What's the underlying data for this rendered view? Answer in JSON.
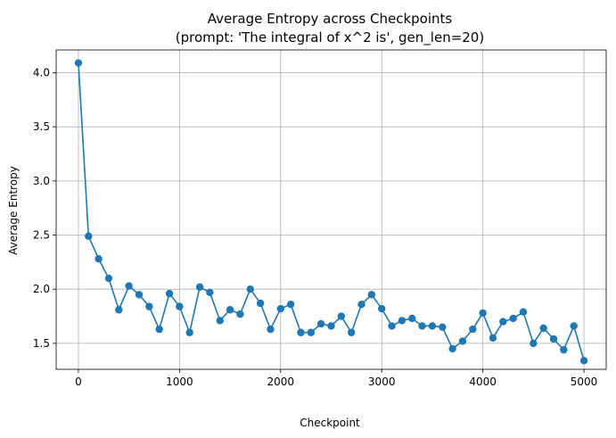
{
  "chart_data": {
    "type": "line",
    "title": "Average Entropy across Checkpoints",
    "subtitle": "(prompt: 'The integral of x^2 is', gen_len=20)",
    "xlabel": "Checkpoint",
    "ylabel": "Average Entropy",
    "xlim": [
      -220,
      5220
    ],
    "ylim": [
      1.26,
      4.21
    ],
    "xticks": [
      0,
      1000,
      2000,
      3000,
      4000,
      5000
    ],
    "xtick_labels": [
      "0",
      "1000",
      "2000",
      "3000",
      "4000",
      "5000"
    ],
    "yticks": [
      1.5,
      2.0,
      2.5,
      3.0,
      3.5,
      4.0
    ],
    "ytick_labels": [
      "1.5",
      "2.0",
      "2.5",
      "3.0",
      "3.5",
      "4.0"
    ],
    "grid": true,
    "legend": "none",
    "series": [
      {
        "color": "#1f77b4",
        "marker": "circle",
        "x": [
          0,
          100,
          200,
          300,
          400,
          500,
          600,
          700,
          800,
          900,
          1000,
          1100,
          1200,
          1300,
          1400,
          1500,
          1600,
          1700,
          1800,
          1900,
          2000,
          2100,
          2200,
          2300,
          2400,
          2500,
          2600,
          2700,
          2800,
          2900,
          3000,
          3100,
          3200,
          3300,
          3400,
          3500,
          3600,
          3700,
          3800,
          3900,
          4000,
          4100,
          4200,
          4300,
          4400,
          4500,
          4600,
          4700,
          4800,
          4900,
          5000
        ],
        "y": [
          4.09,
          2.49,
          2.28,
          2.1,
          1.81,
          2.03,
          1.95,
          1.84,
          1.63,
          1.96,
          1.84,
          1.6,
          2.02,
          1.97,
          1.71,
          1.81,
          1.77,
          2.0,
          1.87,
          1.63,
          1.82,
          1.86,
          1.6,
          1.6,
          1.68,
          1.66,
          1.75,
          1.6,
          1.86,
          1.95,
          1.82,
          1.66,
          1.71,
          1.73,
          1.66,
          1.66,
          1.65,
          1.45,
          1.52,
          1.63,
          1.78,
          1.55,
          1.7,
          1.73,
          1.79,
          1.5,
          1.64,
          1.54,
          1.44,
          1.66,
          1.34
        ]
      }
    ]
  }
}
